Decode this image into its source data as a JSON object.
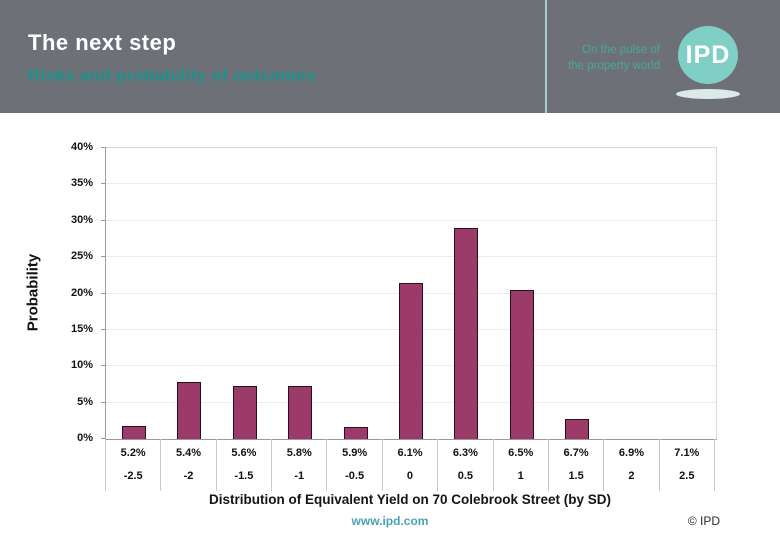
{
  "header": {
    "title": "The next step",
    "subtitle": "Risks and probability of outcomes",
    "tagline_line1": "On the pulse of",
    "tagline_line2": "the property world",
    "logo_text": "IPD"
  },
  "footer": {
    "website": "www.ipd.com",
    "copyright": "© IPD"
  },
  "colors": {
    "header_bg": "#6d7177",
    "title_text": "#ffffff",
    "subtitle_text": "#1e918c",
    "tagline_text": "#45a89c",
    "logo_circle": "#7fcfc5",
    "logo_shadow": "#dce9e8",
    "divider": "#a5cdd0",
    "bar_fill": "#9c3a69",
    "bar_border": "#2b0d20",
    "gridline": "#ececec",
    "footer_link": "#4aa3b5"
  },
  "chart_data": {
    "type": "bar",
    "title": "Distribution of Equivalent Yield on 70 Colebrook Street (by SD)",
    "xlabel": "",
    "ylabel": "Probability",
    "ylim": [
      0,
      40
    ],
    "y_tick_step": 5,
    "y_tick_labels": [
      "0%",
      "5%",
      "10%",
      "15%",
      "20%",
      "25%",
      "30%",
      "35%",
      "40%"
    ],
    "categories": [
      "5.2%",
      "5.4%",
      "5.6%",
      "5.8%",
      "5.9%",
      "6.1%",
      "6.3%",
      "6.5%",
      "6.7%",
      "6.9%",
      "7.1%"
    ],
    "sd_labels": [
      "-2.5",
      "-2",
      "-1.5",
      "-1",
      "-0.5",
      "0",
      "0.5",
      "1",
      "1.5",
      "2",
      "2.5"
    ],
    "values": [
      1.8,
      7.8,
      7.3,
      7.3,
      1.7,
      21.5,
      29.0,
      20.5,
      2.8,
      0,
      0
    ],
    "grid": "horizontal",
    "legend": "none"
  }
}
